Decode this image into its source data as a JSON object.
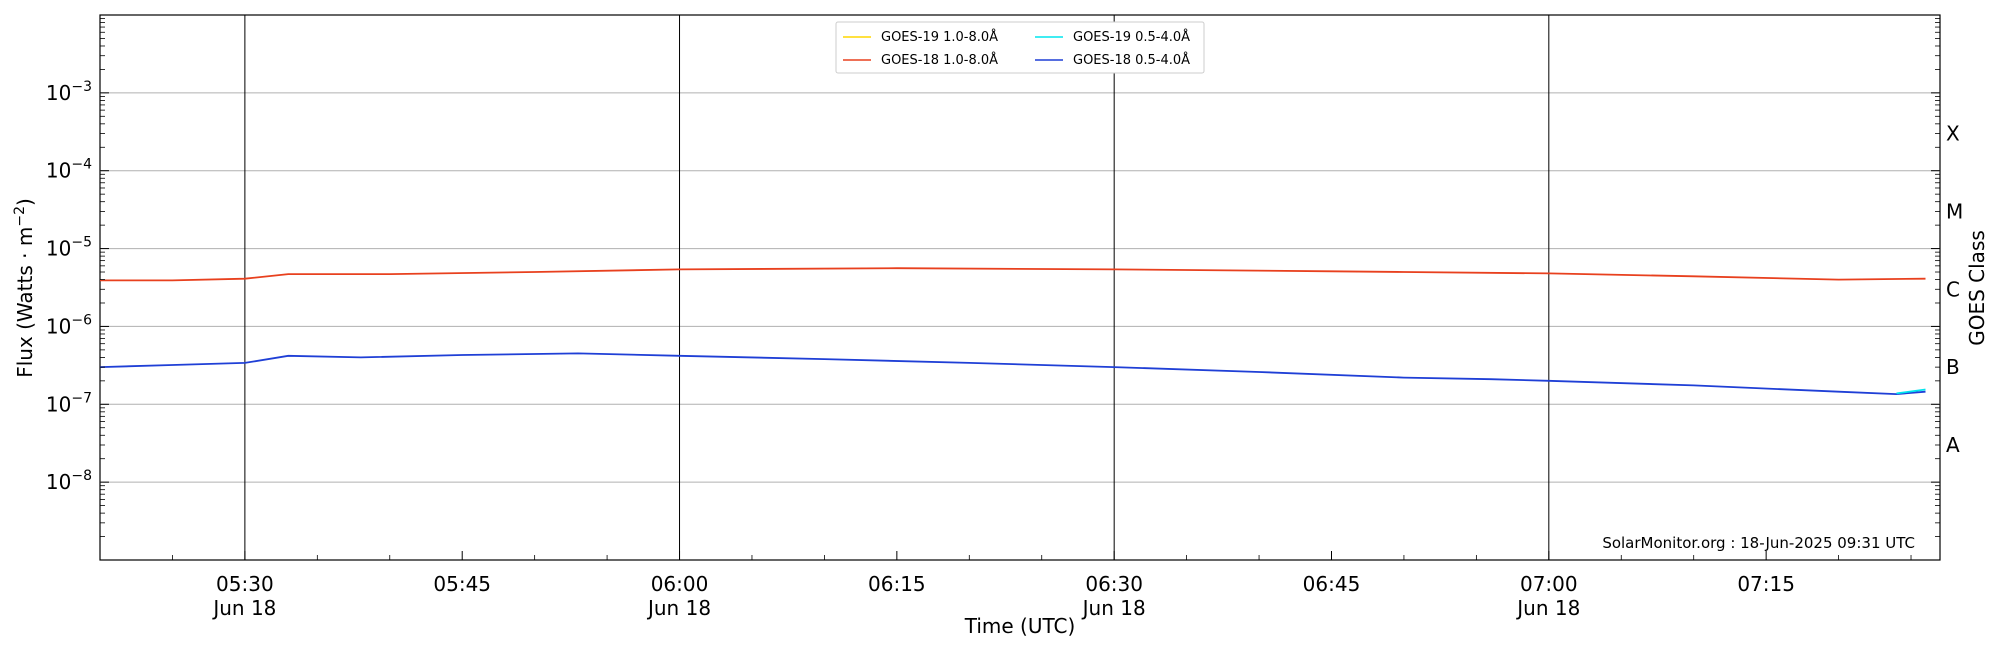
{
  "chart_data": {
    "type": "line",
    "xlabel": "Time (UTC)",
    "ylabel_prefix": "Flux (Watts · m",
    "ylabel_sup": "−2",
    "ylabel_suffix": ")",
    "right_label": "GOES Class",
    "x_range": [
      "05:20",
      "07:27"
    ],
    "y_scale": "log",
    "ylim": [
      1e-09,
      0.01
    ],
    "y_ticks": [
      {
        "value": 1e-08,
        "base": "10",
        "exp": "−8"
      },
      {
        "value": 1e-07,
        "base": "10",
        "exp": "−7"
      },
      {
        "value": 1e-06,
        "base": "10",
        "exp": "−6"
      },
      {
        "value": 1e-05,
        "base": "10",
        "exp": "−5"
      },
      {
        "value": 0.0001,
        "base": "10",
        "exp": "−4"
      },
      {
        "value": 0.001,
        "base": "10",
        "exp": "−3"
      }
    ],
    "x_ticks": [
      {
        "time": "05:30",
        "label": "05:30",
        "sublabel": "Jun 18"
      },
      {
        "time": "05:45",
        "label": "05:45",
        "sublabel": ""
      },
      {
        "time": "06:00",
        "label": "06:00",
        "sublabel": "Jun 18"
      },
      {
        "time": "06:15",
        "label": "06:15",
        "sublabel": ""
      },
      {
        "time": "06:30",
        "label": "06:30",
        "sublabel": "Jun 18"
      },
      {
        "time": "06:45",
        "label": "06:45",
        "sublabel": ""
      },
      {
        "time": "07:00",
        "label": "07:00",
        "sublabel": "Jun 18"
      },
      {
        "time": "07:15",
        "label": "07:15",
        "sublabel": ""
      }
    ],
    "vertical_lines": [
      "05:30",
      "06:00",
      "06:30",
      "07:00"
    ],
    "goes_classes": [
      {
        "label": "X",
        "value": 0.0003
      },
      {
        "label": "M",
        "value": 3e-05
      },
      {
        "label": "C",
        "value": 3e-06
      },
      {
        "label": "B",
        "value": 3e-07
      },
      {
        "label": "A",
        "value": 3e-08
      }
    ],
    "grid": "horizontal",
    "legend_position": "top-center",
    "legend": [
      {
        "label": "GOES-19 1.0-8.0Å",
        "color": "#ffd700"
      },
      {
        "label": "GOES-19 0.5-4.0Å",
        "color": "#00e5ee"
      },
      {
        "label": "GOES-18 1.0-8.0Å",
        "color": "#e8401e"
      },
      {
        "label": "GOES-18 0.5-4.0Å",
        "color": "#1f3fd6"
      }
    ],
    "series": [
      {
        "name": "GOES-18 1.0-8.0Å",
        "color": "#e8401e",
        "points": [
          [
            "05:20",
            3.9e-06
          ],
          [
            "05:25",
            3.9e-06
          ],
          [
            "05:30",
            4.1e-06
          ],
          [
            "05:33",
            4.7e-06
          ],
          [
            "05:40",
            4.7e-06
          ],
          [
            "05:50",
            5e-06
          ],
          [
            "06:00",
            5.4e-06
          ],
          [
            "06:15",
            5.6e-06
          ],
          [
            "06:30",
            5.4e-06
          ],
          [
            "06:45",
            5.1e-06
          ],
          [
            "06:50",
            5e-06
          ],
          [
            "07:00",
            4.8e-06
          ],
          [
            "07:10",
            4.4e-06
          ],
          [
            "07:20",
            4e-06
          ],
          [
            "07:26",
            4.1e-06
          ]
        ]
      },
      {
        "name": "GOES-18 0.5-4.0Å",
        "color": "#1f3fd6",
        "points": [
          [
            "05:20",
            3e-07
          ],
          [
            "05:25",
            3.2e-07
          ],
          [
            "05:30",
            3.4e-07
          ],
          [
            "05:33",
            4.2e-07
          ],
          [
            "05:38",
            4e-07
          ],
          [
            "05:45",
            4.3e-07
          ],
          [
            "05:53",
            4.5e-07
          ],
          [
            "06:00",
            4.2e-07
          ],
          [
            "06:10",
            3.8e-07
          ],
          [
            "06:20",
            3.4e-07
          ],
          [
            "06:30",
            3e-07
          ],
          [
            "06:40",
            2.6e-07
          ],
          [
            "06:50",
            2.2e-07
          ],
          [
            "06:56",
            2.1e-07
          ],
          [
            "07:00",
            2e-07
          ],
          [
            "07:10",
            1.75e-07
          ],
          [
            "07:20",
            1.45e-07
          ],
          [
            "07:24",
            1.35e-07
          ],
          [
            "07:26",
            1.45e-07
          ]
        ]
      },
      {
        "name": "GOES-19 0.5-4.0Å",
        "color": "#00e5ee",
        "points": [
          [
            "07:24",
            1.38e-07
          ],
          [
            "07:26",
            1.55e-07
          ]
        ]
      }
    ],
    "credit": "SolarMonitor.org : 18-Jun-2025 09:31 UTC"
  }
}
